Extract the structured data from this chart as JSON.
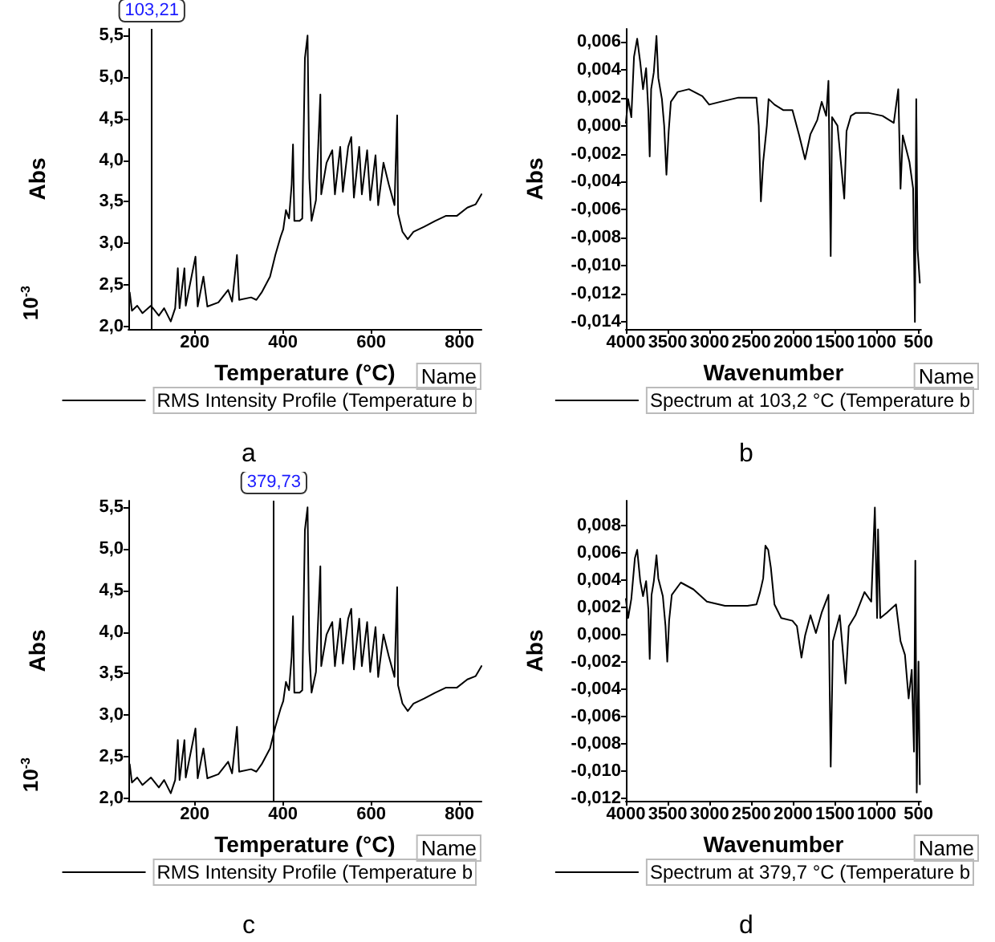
{
  "chart_data": [
    {
      "type": "line",
      "xlabel": "Temperature (°C)",
      "ylabel": "Abs",
      "legend_title": "Name",
      "legend": "bottom",
      "grid": false,
      "marker": "none",
      "line_style": "solid",
      "annotations": [
        "10$^{-3}$",
        "a"
      ],
      "xlim": [
        50,
        850
      ],
      "xticks": [
        200,
        400,
        600,
        800
      ],
      "ylim": [
        1.97,
        5.58
      ],
      "yticks": [
        {
          "value": 2,
          "label": "2,0"
        },
        {
          "value": 2.5,
          "label": "2,5"
        },
        {
          "value": 3,
          "label": "3,0"
        },
        {
          "value": 3.5,
          "label": "3,5"
        },
        {
          "value": 4,
          "label": "4,0"
        },
        {
          "value": 4.5,
          "label": "4,5"
        },
        {
          "value": 5,
          "label": "5,0"
        },
        {
          "value": 5.5,
          "label": "5,5"
        }
      ],
      "ref_lines": [
        {
          "axis": "x",
          "value": 103.21,
          "label": "103,21"
        }
      ],
      "x": [
        53,
        58,
        70,
        82,
        101,
        119,
        131,
        146,
        156,
        162,
        166,
        177,
        180,
        202,
        207,
        220,
        229,
        254,
        276,
        285,
        296,
        301,
        328,
        340,
        352,
        371,
        383,
        395,
        401,
        407,
        414,
        420,
        423,
        426,
        438,
        444,
        450,
        456,
        460,
        465,
        475,
        485,
        487,
        499,
        512,
        518,
        530,
        536,
        548,
        555,
        561,
        573,
        579,
        591,
        598,
        610,
        616,
        628,
        640,
        653,
        659,
        661,
        671,
        683,
        696,
        720,
        745,
        769,
        794,
        818,
        837,
        850
      ],
      "series": [
        {
          "name": "RMS Intensity Profile (Temperature b",
          "color": "#000000",
          "values": [
            2.41,
            2.19,
            2.25,
            2.16,
            2.25,
            2.13,
            2.22,
            2.06,
            2.22,
            2.7,
            2.22,
            2.7,
            2.25,
            2.84,
            2.24,
            2.6,
            2.24,
            2.29,
            2.44,
            2.3,
            2.86,
            2.32,
            2.35,
            2.32,
            2.41,
            2.6,
            2.86,
            3.08,
            3.17,
            3.4,
            3.3,
            3.71,
            4.19,
            3.27,
            3.27,
            3.3,
            5.23,
            5.5,
            3.78,
            3.27,
            3.52,
            4.79,
            3.59,
            3.97,
            4.12,
            3.59,
            4.16,
            3.62,
            4.16,
            4.28,
            3.55,
            4.16,
            3.59,
            4.12,
            3.52,
            4.06,
            3.46,
            3.97,
            3.71,
            3.46,
            4.54,
            3.36,
            3.14,
            3.05,
            3.14,
            3.2,
            3.27,
            3.33,
            3.33,
            3.43,
            3.47,
            3.59
          ]
        }
      ]
    },
    {
      "type": "line",
      "xlabel": "Wavenumber",
      "ylabel": "Abs",
      "legend_title": "Name",
      "legend": "bottom",
      "grid": false,
      "marker": "none",
      "line_style": "solid",
      "annotations": [
        "b"
      ],
      "xlim": [
        4000,
        470
      ],
      "xticks": [
        4000,
        3500,
        3000,
        2500,
        2000,
        1500,
        1000,
        500
      ],
      "ylim": [
        -0.0145,
        0.0069
      ],
      "yticks": [
        {
          "value": -0.014,
          "label": "-0,014"
        },
        {
          "value": -0.012,
          "label": "-0,012"
        },
        {
          "value": -0.01,
          "label": "-0,010"
        },
        {
          "value": -0.008,
          "label": "-0,008"
        },
        {
          "value": -0.006,
          "label": "-0,006"
        },
        {
          "value": -0.004,
          "label": "-0,004"
        },
        {
          "value": -0.002,
          "label": "-0,002"
        },
        {
          "value": 0,
          "label": "0,000"
        },
        {
          "value": 0.002,
          "label": "0,002"
        },
        {
          "value": 0.004,
          "label": "0,004"
        },
        {
          "value": 0.006,
          "label": "0,006"
        }
      ],
      "x": [
        4000,
        3973,
        3935,
        3903,
        3865,
        3828,
        3795,
        3758,
        3731,
        3715,
        3698,
        3666,
        3634,
        3612,
        3569,
        3542,
        3515,
        3488,
        3462,
        3381,
        3246,
        3085,
        3004,
        2869,
        2654,
        2438,
        2411,
        2385,
        2358,
        2314,
        2293,
        2223,
        2115,
        2008,
        1927,
        1857,
        1792,
        1711,
        1658,
        1604,
        1577,
        1550,
        1534,
        1469,
        1388,
        1361,
        1308,
        1254,
        1092,
        931,
        796,
        742,
        715,
        688,
        608,
        564,
        543,
        527,
        511,
        484
      ],
      "series": [
        {
          "name": "Spectrum at 103,2 °C (Temperature b",
          "color": "#000000",
          "values": [
            0.0002,
            0.0019,
            0.0006,
            0.0049,
            0.0062,
            0.0045,
            0.0026,
            0.0041,
            0.001,
            -0.0022,
            0.0026,
            0.0038,
            0.0064,
            0.0034,
            0.0019,
            0.0,
            -0.0035,
            -0.0004,
            0.0017,
            0.0024,
            0.0026,
            0.0021,
            0.0015,
            0.0017,
            0.002,
            0.002,
            0.0,
            -0.0054,
            -0.0026,
            0.0,
            0.0019,
            0.0015,
            0.0011,
            0.0011,
            -0.0007,
            -0.0024,
            -0.0006,
            0.0004,
            0.0017,
            0.0007,
            0.0032,
            -0.0093,
            0.0006,
            0.0,
            -0.0052,
            -0.0004,
            0.0007,
            0.0009,
            0.0009,
            0.0007,
            0.0002,
            0.0026,
            -0.0045,
            -0.0007,
            -0.0026,
            -0.0045,
            -0.014,
            0.0019,
            -0.0088,
            -0.0112
          ]
        }
      ]
    },
    {
      "type": "line",
      "xlabel": "Temperature (°C)",
      "ylabel": "Abs",
      "legend_title": "Name",
      "legend": "bottom",
      "grid": false,
      "marker": "none",
      "line_style": "solid",
      "annotations": [
        "10$^{-3}$",
        "c"
      ],
      "xlim": [
        50,
        850
      ],
      "xticks": [
        200,
        400,
        600,
        800
      ],
      "ylim": [
        1.97,
        5.58
      ],
      "yticks": [
        {
          "value": 2,
          "label": "2,0"
        },
        {
          "value": 2.5,
          "label": "2,5"
        },
        {
          "value": 3,
          "label": "3,0"
        },
        {
          "value": 3.5,
          "label": "3,5"
        },
        {
          "value": 4,
          "label": "4,0"
        },
        {
          "value": 4.5,
          "label": "4,5"
        },
        {
          "value": 5,
          "label": "5,0"
        },
        {
          "value": 5.5,
          "label": "5,5"
        }
      ],
      "ref_lines": [
        {
          "axis": "x",
          "value": 379.73,
          "label": "379,73"
        }
      ],
      "x": [
        53,
        58,
        70,
        82,
        101,
        119,
        131,
        146,
        156,
        162,
        166,
        177,
        180,
        202,
        207,
        220,
        229,
        254,
        276,
        285,
        296,
        301,
        328,
        340,
        352,
        371,
        383,
        395,
        401,
        407,
        414,
        420,
        423,
        426,
        438,
        444,
        450,
        456,
        460,
        465,
        475,
        485,
        487,
        499,
        512,
        518,
        530,
        536,
        548,
        555,
        561,
        573,
        579,
        591,
        598,
        610,
        616,
        628,
        640,
        653,
        659,
        661,
        671,
        683,
        696,
        720,
        745,
        769,
        794,
        818,
        837,
        850
      ],
      "series": [
        {
          "name": "RMS Intensity Profile (Temperature b",
          "color": "#000000",
          "values": [
            2.41,
            2.19,
            2.25,
            2.16,
            2.25,
            2.13,
            2.22,
            2.06,
            2.22,
            2.7,
            2.22,
            2.7,
            2.25,
            2.84,
            2.24,
            2.6,
            2.24,
            2.29,
            2.44,
            2.3,
            2.86,
            2.32,
            2.35,
            2.32,
            2.41,
            2.6,
            2.86,
            3.08,
            3.17,
            3.4,
            3.3,
            3.71,
            4.19,
            3.27,
            3.27,
            3.3,
            5.23,
            5.5,
            3.78,
            3.27,
            3.52,
            4.79,
            3.59,
            3.97,
            4.12,
            3.59,
            4.16,
            3.62,
            4.16,
            4.28,
            3.55,
            4.16,
            3.59,
            4.12,
            3.52,
            4.06,
            3.46,
            3.97,
            3.71,
            3.46,
            4.54,
            3.36,
            3.14,
            3.05,
            3.14,
            3.2,
            3.27,
            3.33,
            3.33,
            3.43,
            3.47,
            3.59
          ]
        }
      ]
    },
    {
      "type": "line",
      "xlabel": "Wavenumber",
      "ylabel": "Abs",
      "legend_title": "Name",
      "legend": "bottom",
      "grid": false,
      "marker": "none",
      "line_style": "solid",
      "annotations": [
        "d"
      ],
      "xlim": [
        4000,
        470
      ],
      "xticks": [
        4000,
        3500,
        3000,
        2500,
        2000,
        1500,
        1000,
        500
      ],
      "ylim": [
        -0.0122,
        0.0098
      ],
      "yticks": [
        {
          "value": -0.012,
          "label": "-0,012"
        },
        {
          "value": -0.01,
          "label": "-0,010"
        },
        {
          "value": -0.008,
          "label": "-0,008"
        },
        {
          "value": -0.006,
          "label": "-0,006"
        },
        {
          "value": -0.004,
          "label": "-0,004"
        },
        {
          "value": -0.002,
          "label": "-0,002"
        },
        {
          "value": 0,
          "label": "0,000"
        },
        {
          "value": 0.002,
          "label": "0,002"
        },
        {
          "value": 0.004,
          "label": "0,004"
        },
        {
          "value": 0.006,
          "label": "0,006"
        },
        {
          "value": 0.008,
          "label": "0,008"
        }
      ],
      "x": [
        4000,
        3973,
        3935,
        3892,
        3865,
        3828,
        3795,
        3758,
        3731,
        3715,
        3693,
        3666,
        3634,
        3612,
        3558,
        3526,
        3505,
        3483,
        3451,
        3343,
        3192,
        3031,
        2815,
        2546,
        2438,
        2395,
        2358,
        2331,
        2298,
        2266,
        2223,
        2142,
        2008,
        1954,
        1900,
        1857,
        1792,
        1727,
        1658,
        1577,
        1550,
        1523,
        1442,
        1372,
        1334,
        1254,
        1146,
        1065,
        1022,
        995,
        984,
        957,
        877,
        769,
        715,
        662,
        618,
        581,
        554,
        538,
        521,
        500,
        484
      ],
      "series": [
        {
          "name": "Spectrum at 379,7 °C (Temperature b",
          "color": "#000000",
          "values": [
            0.0026,
            0.0012,
            0.0026,
            0.0056,
            0.0062,
            0.0039,
            0.0028,
            0.0039,
            0.0018,
            -0.0018,
            0.0029,
            0.0039,
            0.0058,
            0.0041,
            0.0028,
            0.0006,
            -0.002,
            0.001,
            0.0029,
            0.0038,
            0.0033,
            0.0024,
            0.0021,
            0.0021,
            0.0022,
            0.0031,
            0.0041,
            0.0065,
            0.0062,
            0.0049,
            0.0022,
            0.0012,
            0.001,
            0.0006,
            -0.0017,
            -0.0001,
            0.0014,
            0.0001,
            0.0016,
            0.0029,
            -0.0097,
            -0.0005,
            0.0014,
            -0.0036,
            0.0006,
            0.0014,
            0.0031,
            0.0024,
            0.0093,
            0.0012,
            0.0077,
            0.0012,
            0.0016,
            0.0022,
            -0.0005,
            -0.0015,
            -0.0047,
            -0.0026,
            -0.0086,
            0.0054,
            -0.0116,
            -0.002,
            -0.011
          ]
        }
      ]
    }
  ]
}
